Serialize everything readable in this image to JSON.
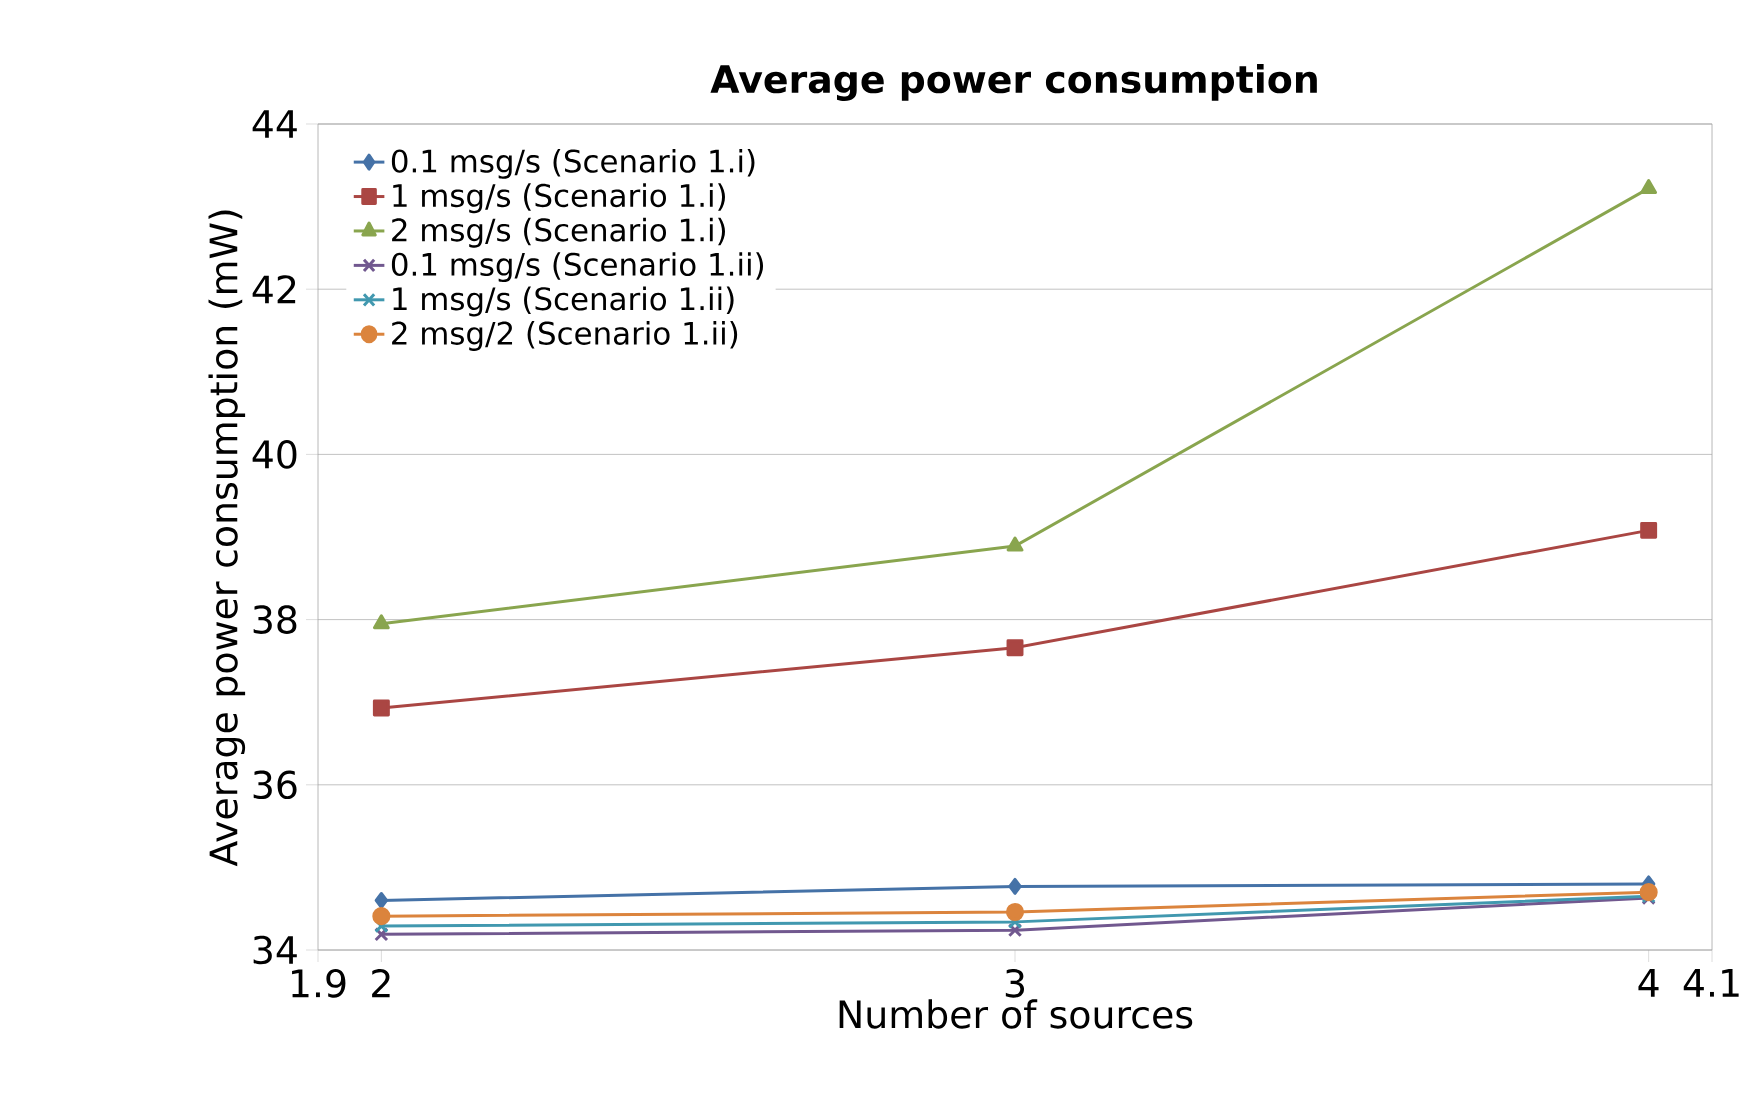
{
  "chart_data": {
    "type": "line",
    "title": "Average power consumption",
    "xlabel": "Number of sources",
    "ylabel": "Average power consumption (mW)",
    "x": [
      2,
      3,
      4
    ],
    "xlim": [
      1.9,
      4.1
    ],
    "xticks": [
      1.9,
      2,
      3,
      4,
      4.1
    ],
    "ylim": [
      34,
      44
    ],
    "yticks": [
      34,
      36,
      38,
      40,
      42,
      44
    ],
    "grid": "y",
    "legend": "top left",
    "series": [
      {
        "name": "0.1 msg/s (Scenario 1.i)",
        "color": "#4572a7",
        "marker": "diamond",
        "values": [
          34.6,
          34.77,
          34.8
        ]
      },
      {
        "name": "1 msg/s (Scenario 1.i)",
        "color": "#aa4643",
        "marker": "square",
        "values": [
          36.93,
          37.66,
          39.08
        ]
      },
      {
        "name": "2 msg/s (Scenario 1.i)",
        "color": "#89a54e",
        "marker": "triangle",
        "values": [
          37.95,
          38.89,
          43.22
        ]
      },
      {
        "name": "0.1 msg/s (Scenario 1.ii)",
        "color": "#71588f",
        "marker": "cross",
        "values": [
          34.19,
          34.24,
          34.63
        ]
      },
      {
        "name": "1 msg/s (Scenario 1.ii)",
        "color": "#4198af",
        "marker": "cross",
        "values": [
          34.29,
          34.34,
          34.65
        ]
      },
      {
        "name": "2 msg/2 (Scenario 1.ii)",
        "color": "#db843d",
        "marker": "circle",
        "values": [
          34.41,
          34.46,
          34.7
        ]
      }
    ]
  }
}
